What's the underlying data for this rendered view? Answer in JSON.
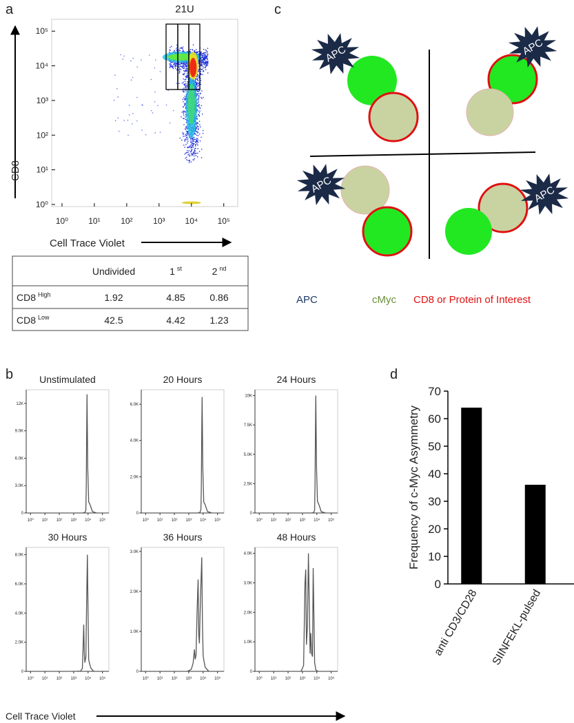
{
  "panel_labels": [
    "a",
    "b",
    "c",
    "d"
  ],
  "chart_data": [
    {
      "type": "scatter",
      "title": "21U",
      "xlabel": "Cell Trace Violet",
      "ylabel": "CD8",
      "xlog": true,
      "ylog": true,
      "xlim": [
        0.48,
        270000
      ],
      "ylim": [
        0.87,
        220000
      ],
      "xticks": [
        {
          "value": 1,
          "label": "10⁰"
        },
        {
          "value": 10,
          "label": "10¹"
        },
        {
          "value": 100,
          "label": "10²"
        },
        {
          "value": 1000,
          "label": "10³"
        },
        {
          "value": 10000,
          "label": "10⁴"
        },
        {
          "value": 100000,
          "label": "10⁵"
        }
      ],
      "yticks": [
        {
          "value": 1,
          "label": "10⁰"
        },
        {
          "value": 10,
          "label": "10¹"
        },
        {
          "value": 100,
          "label": "10²"
        },
        {
          "value": 1000,
          "label": "10³"
        },
        {
          "value": 10000,
          "label": "10⁴"
        },
        {
          "value": 100000,
          "label": "10⁵"
        }
      ]
    },
    {
      "type": "line",
      "title": "Unstimulated",
      "color": "#555555",
      "xlog": true,
      "xlim": [
        0.5,
        280000
      ],
      "x": [
        1000,
        4000,
        6000,
        7000,
        7500,
        8000,
        8500,
        9500,
        11000,
        13000,
        16000,
        20000,
        40000
      ],
      "values": [
        0,
        0,
        50,
        300,
        3000,
        9000,
        13000,
        5000,
        1200,
        1000,
        600,
        150,
        0
      ],
      "xticks": [
        {
          "value": 1,
          "label": "10⁰"
        },
        {
          "value": 10,
          "label": "10¹"
        },
        {
          "value": 100,
          "label": "10²"
        },
        {
          "value": 1000,
          "label": "10³"
        },
        {
          "value": 10000,
          "label": "10⁴"
        },
        {
          "value": 100000,
          "label": "10⁵"
        }
      ],
      "ylim": [
        0,
        13500
      ],
      "yticks": [
        0,
        {
          "value": 3000,
          "label": "3.0K"
        },
        {
          "value": 6000,
          "label": "6.0K"
        },
        {
          "value": 9000,
          "label": "9.0K"
        },
        {
          "value": 12000,
          "label": "12K"
        }
      ]
    },
    {
      "type": "line",
      "title": "20 Hours",
      "color": "#555555",
      "xlog": true,
      "xlim": [
        0.5,
        280000
      ],
      "x": [
        1000,
        4000,
        6000,
        7000,
        7500,
        8000,
        8500,
        9500,
        11000,
        13000,
        16000,
        20000,
        40000
      ],
      "values": [
        0,
        0,
        30,
        200,
        1500,
        4500,
        6400,
        2500,
        600,
        500,
        300,
        80,
        0
      ],
      "xticks": [
        {
          "value": 1,
          "label": "10⁰"
        },
        {
          "value": 10,
          "label": "10¹"
        },
        {
          "value": 100,
          "label": "10²"
        },
        {
          "value": 1000,
          "label": "10³"
        },
        {
          "value": 10000,
          "label": "10⁴"
        },
        {
          "value": 100000,
          "label": "10⁵"
        }
      ],
      "ylim": [
        0,
        6800
      ],
      "yticks": [
        0,
        {
          "value": 2000,
          "label": "2.0K"
        },
        {
          "value": 4000,
          "label": "4.0K"
        },
        {
          "value": 6000,
          "label": "6.0K"
        }
      ]
    },
    {
      "type": "line",
      "title": "24 Hours",
      "color": "#555555",
      "xlog": true,
      "xlim": [
        0.5,
        280000
      ],
      "x": [
        1000,
        4000,
        6000,
        7000,
        7500,
        8000,
        8500,
        9500,
        11000,
        13000,
        16000,
        20000,
        40000
      ],
      "values": [
        0,
        0,
        40,
        250,
        2500,
        7000,
        10000,
        4000,
        1000,
        800,
        500,
        120,
        0
      ],
      "xticks": [
        {
          "value": 1,
          "label": "10⁰"
        },
        {
          "value": 10,
          "label": "10¹"
        },
        {
          "value": 100,
          "label": "10²"
        },
        {
          "value": 1000,
          "label": "10³"
        },
        {
          "value": 10000,
          "label": "10⁴"
        },
        {
          "value": 100000,
          "label": "10⁵"
        }
      ],
      "ylim": [
        0,
        10500
      ],
      "yticks": [
        0,
        {
          "value": 2500,
          "label": "2.5K"
        },
        {
          "value": 5000,
          "label": "5.0K"
        },
        {
          "value": 7500,
          "label": "7.5K"
        },
        {
          "value": 10000,
          "label": "10K"
        }
      ]
    },
    {
      "type": "line",
      "title": "30 Hours",
      "color": "#555555",
      "xlog": true,
      "xlim": [
        0.5,
        280000
      ],
      "x": [
        1000,
        3000,
        4000,
        4500,
        5000,
        5500,
        6000,
        7000,
        8000,
        9000,
        10000,
        11000,
        13000,
        16000,
        25000
      ],
      "values": [
        0,
        20,
        200,
        1500,
        3200,
        1200,
        600,
        1000,
        5000,
        8000,
        4000,
        800,
        500,
        200,
        0
      ],
      "xticks": [
        {
          "value": 1,
          "label": "10⁰"
        },
        {
          "value": 10,
          "label": "10¹"
        },
        {
          "value": 100,
          "label": "10²"
        },
        {
          "value": 1000,
          "label": "10³"
        },
        {
          "value": 10000,
          "label": "10⁴"
        },
        {
          "value": 100000,
          "label": "10⁵"
        }
      ],
      "ylim": [
        0,
        8500
      ],
      "yticks": [
        0,
        {
          "value": 2000,
          "label": "2.0K"
        },
        {
          "value": 4000,
          "label": "4.0K"
        },
        {
          "value": 6000,
          "label": "6.0K"
        },
        {
          "value": 8000,
          "label": "8.0K"
        }
      ]
    },
    {
      "type": "line",
      "title": "36 Hours",
      "color": "#555555",
      "xlog": true,
      "xlim": [
        0.5,
        280000
      ],
      "x": [
        800,
        1500,
        2000,
        2500,
        2800,
        3200,
        3800,
        4500,
        5000,
        5500,
        6500,
        8000,
        9000,
        10000,
        11500,
        14000,
        25000
      ],
      "values": [
        0,
        50,
        200,
        550,
        300,
        400,
        1500,
        2300,
        900,
        700,
        1800,
        2850,
        1200,
        400,
        250,
        100,
        0
      ],
      "xticks": [
        {
          "value": 1,
          "label": "10⁰"
        },
        {
          "value": 10,
          "label": "10¹"
        },
        {
          "value": 100,
          "label": "10²"
        },
        {
          "value": 1000,
          "label": "10³"
        },
        {
          "value": 10000,
          "label": "10⁴"
        },
        {
          "value": 100000,
          "label": "10⁵"
        }
      ],
      "ylim": [
        0,
        3100
      ],
      "yticks": [
        0,
        {
          "value": 1000,
          "label": "1.0K"
        },
        {
          "value": 2000,
          "label": "2.0K"
        },
        {
          "value": 3000,
          "label": "3.0K"
        }
      ]
    },
    {
      "type": "line",
      "title": "48 Hours",
      "color": "#555555",
      "xlog": true,
      "xlim": [
        0.5,
        280000
      ],
      "x": [
        800,
        1200,
        1500,
        1700,
        1900,
        2200,
        2600,
        3000,
        3400,
        3800,
        4400,
        5000,
        5600,
        6200,
        7000,
        8500,
        12000
      ],
      "values": [
        0,
        200,
        3000,
        3450,
        900,
        1500,
        4000,
        2200,
        600,
        1300,
        600,
        500,
        3500,
        2000,
        300,
        50,
        0
      ],
      "xticks": [
        {
          "value": 1,
          "label": "10⁰"
        },
        {
          "value": 10,
          "label": "10¹"
        },
        {
          "value": 100,
          "label": "10²"
        },
        {
          "value": 1000,
          "label": "10³"
        },
        {
          "value": 10000,
          "label": "10⁴"
        },
        {
          "value": 100000,
          "label": "10⁵"
        }
      ],
      "ylim": [
        0,
        4200
      ],
      "yticks": [
        0,
        {
          "value": 1000,
          "label": "1.0K"
        },
        {
          "value": 2000,
          "label": "2.0K"
        },
        {
          "value": 3000,
          "label": "3.0K"
        },
        {
          "value": 4000,
          "label": "4.0K"
        }
      ]
    },
    {
      "type": "bar",
      "ylabel": "Frequency of c-Myc Asymmetry",
      "categories": [
        "anti CD3/CD28",
        "SIINFEKL-pulsed"
      ],
      "values": [
        64,
        36
      ],
      "color": "#000000",
      "ylim": [
        0,
        70
      ],
      "yticks": [
        0,
        10,
        20,
        30,
        40,
        50,
        60,
        70
      ]
    }
  ],
  "histogram_xlabel": "Cell Trace Violet",
  "table": {
    "columns": [
      "Undivided",
      {
        "text": "1",
        "sup": "st"
      },
      {
        "text": "2",
        "sup": "nd"
      }
    ],
    "rows": [
      {
        "label": {
          "text": "CD8",
          "sup": "High"
        },
        "cells": [
          1.92,
          4.85,
          0.86
        ]
      },
      {
        "label": {
          "text": "CD8",
          "sup": "Low"
        },
        "cells": [
          42.5,
          4.42,
          1.23
        ]
      }
    ]
  },
  "diagram": {
    "apc": [
      "APC",
      "APC",
      "APC",
      "APC"
    ],
    "legend": [
      {
        "text": "APC",
        "color": "#1f3864"
      },
      {
        "text": "cMyc",
        "color": "#6a8f3a"
      },
      {
        "text": "CD8 or Protein of Interest",
        "color": "#e01010"
      }
    ]
  }
}
